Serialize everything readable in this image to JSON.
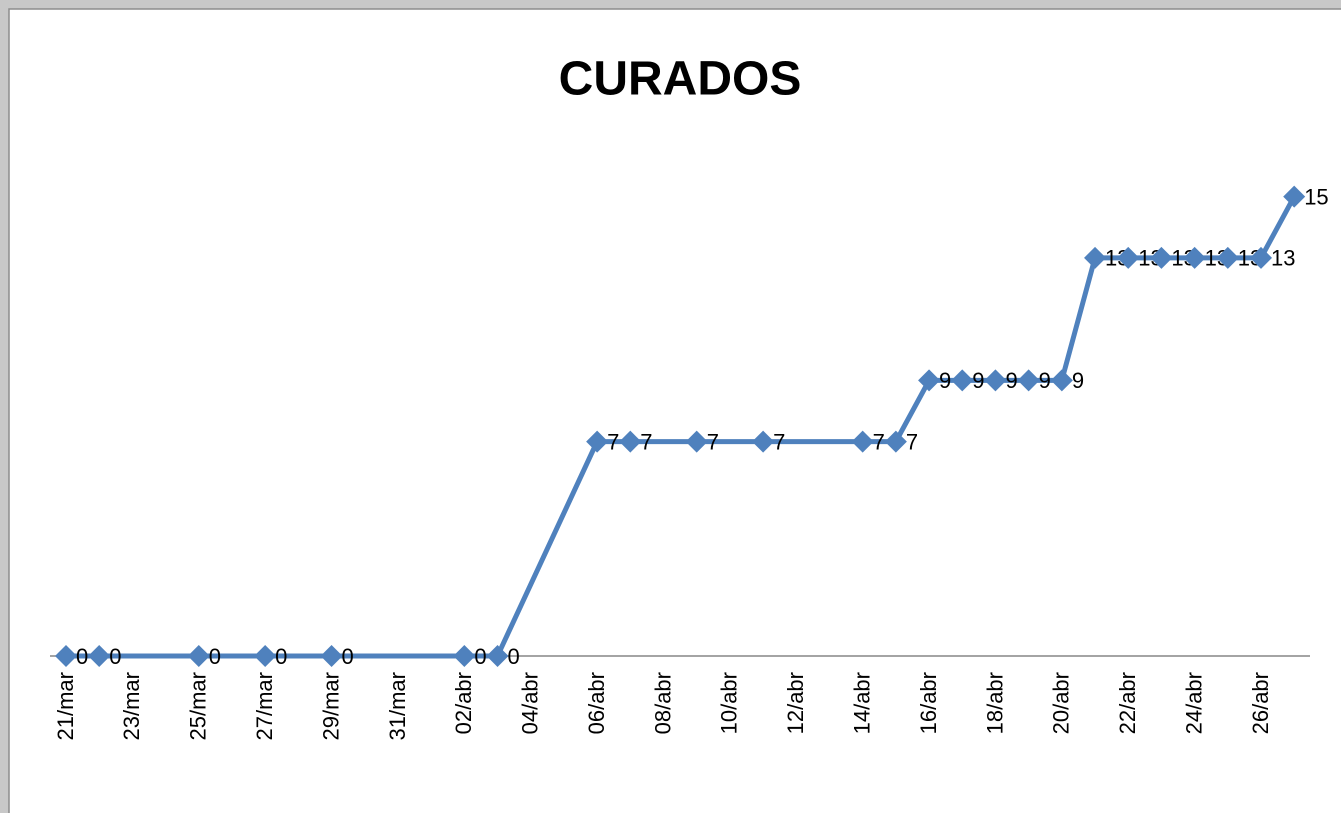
{
  "chart_data": {
    "type": "line",
    "title": "CURADOS",
    "x": [
      "21/mar",
      "22/mar",
      "25/mar",
      "27/mar",
      "29/mar",
      "02/abr",
      "03/abr",
      "06/abr",
      "07/abr",
      "09/abr",
      "11/abr",
      "14/abr",
      "15/abr",
      "16/abr",
      "17/abr",
      "18/abr",
      "19/abr",
      "20/abr",
      "21/abr",
      "22/abr",
      "23/abr",
      "24/abr",
      "25/abr",
      "26/abr",
      "27/abr"
    ],
    "series": [
      {
        "name": "CURADOS",
        "color": "#4f81bd",
        "values": [
          0,
          0,
          0,
          0,
          0,
          0,
          0,
          7,
          7,
          7,
          7,
          7,
          7,
          9,
          9,
          9,
          9,
          9,
          13,
          13,
          13,
          13,
          13,
          13,
          15
        ]
      }
    ],
    "xticks": [
      "21/mar",
      "23/mar",
      "25/mar",
      "27/mar",
      "29/mar",
      "31/mar",
      "02/abr",
      "04/abr",
      "06/abr",
      "08/abr",
      "10/abr",
      "12/abr",
      "14/abr",
      "16/abr",
      "18/abr",
      "20/abr",
      "22/abr",
      "24/abr",
      "26/abr"
    ],
    "ylim": [
      0,
      16
    ]
  }
}
